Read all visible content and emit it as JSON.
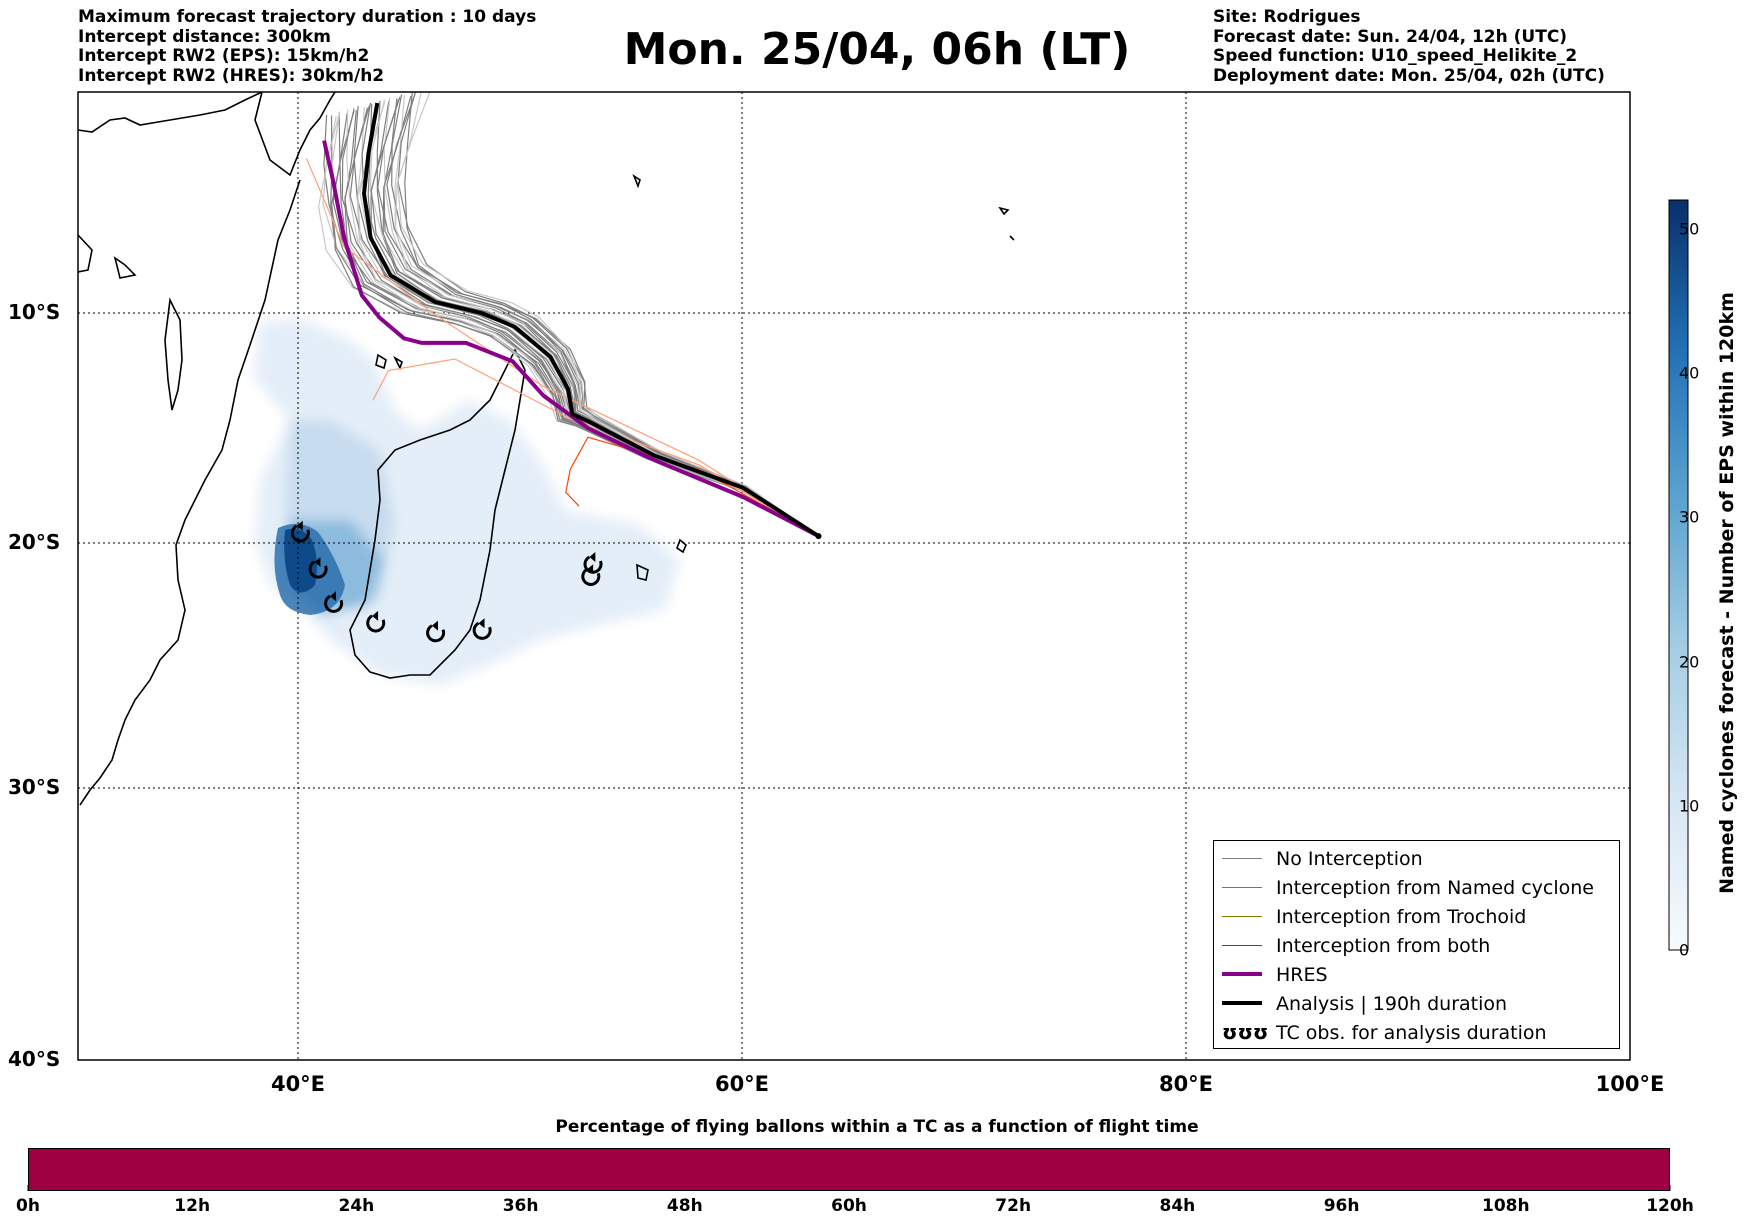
{
  "header_left": [
    "Maximum forecast trajectory duration : 10 days",
    "Intercept distance: 300km",
    "Intercept RW2 (EPS):  15km/h2",
    "Intercept RW2 (HRES): 30km/h2"
  ],
  "title": "Mon. 25/04, 06h (LT)",
  "header_right": [
    "Site: Rodrigues",
    "Forecast date: Sun. 24/04, 12h (UTC)",
    "Speed function: U10_speed_Helikite_2",
    "Deployment date: Mon. 25/04, 02h (UTC)"
  ],
  "map": {
    "lat_labels": [
      "10°S",
      "20°S",
      "30°S",
      "40°S"
    ],
    "lon_labels": [
      "40°E",
      "60°E",
      "80°E",
      "100°E"
    ],
    "lon_range": [
      30,
      100
    ],
    "lat_range": [
      -40,
      -0.5
    ],
    "gridlines": "dotted",
    "release_site": {
      "name": "Rodrigues",
      "lon": 63.4,
      "lat": -19.7
    },
    "tc_observations": [
      {
        "lon": 40.0,
        "lat": -19.6
      },
      {
        "lon": 40.8,
        "lat": -21.1
      },
      {
        "lon": 41.5,
        "lat": -22.5
      },
      {
        "lon": 43.4,
        "lat": -23.3
      },
      {
        "lon": 46.1,
        "lat": -23.7
      },
      {
        "lon": 48.2,
        "lat": -23.6
      },
      {
        "lon": 53.1,
        "lat": -21.4
      },
      {
        "lon": 53.2,
        "lat": -20.9
      }
    ],
    "analysis_track": [
      [
        63.4,
        -19.7
      ],
      [
        60,
        -17.6
      ],
      [
        56,
        -16.2
      ],
      [
        53,
        -14.7
      ],
      [
        52.3,
        -14.4
      ],
      [
        52.1,
        -13.3
      ],
      [
        51.3,
        -11.9
      ],
      [
        49.7,
        -10.6
      ],
      [
        48.2,
        -10
      ],
      [
        46.1,
        -9.5
      ],
      [
        44.1,
        -8.3
      ],
      [
        43.2,
        -6.6
      ],
      [
        42.9,
        -4.6
      ],
      [
        43.1,
        -2.8
      ],
      [
        43.5,
        -0.5
      ]
    ],
    "hres_track": [
      [
        63.4,
        -19.7
      ],
      [
        60,
        -18
      ],
      [
        56,
        -16.4
      ],
      [
        53,
        -15
      ],
      [
        51,
        -13.6
      ],
      [
        49.6,
        -12.1
      ],
      [
        47.5,
        -11.3
      ],
      [
        45.5,
        -11.3
      ],
      [
        44.7,
        -11.1
      ],
      [
        43.6,
        -10.2
      ],
      [
        42.8,
        -9.2
      ],
      [
        42.0,
        -6.6
      ],
      [
        41.5,
        -4
      ],
      [
        41.1,
        -2.2
      ]
    ]
  },
  "legend": {
    "items": [
      {
        "label": "No Interception",
        "color": "#7f7f7f",
        "width": 1.2
      },
      {
        "label": "Interception from Named cyclone",
        "color": "#ff4500",
        "width": 1.2
      },
      {
        "label": "Interception from Trochoid",
        "color": "#808000",
        "width": 1.2
      },
      {
        "label": "Interception from both",
        "color": "#008000",
        "width": 1.2
      },
      {
        "label": "HRES",
        "color": "#8b008b",
        "width": 4
      },
      {
        "label": "Analysis | 190h duration",
        "color": "#000000",
        "width": 4
      },
      {
        "label": "TC obs. for analysis duration",
        "icon": "cyclone-symbol-icon"
      }
    ],
    "tc_symbol_text": "ʊʊʊ"
  },
  "colorbar": {
    "label": "Named cyclones forecast - Number of EPS within 120km",
    "ticks": [
      "0",
      "10",
      "20",
      "30",
      "40",
      "50"
    ],
    "range": [
      0,
      52
    ],
    "cmap": [
      "#e3eef8",
      "#08306b"
    ]
  },
  "flight_time_bar": {
    "title": "Percentage of flying ballons within a TC as a function of flight time",
    "ticks": [
      "0h",
      "12h",
      "24h",
      "36h",
      "48h",
      "60h",
      "72h",
      "84h",
      "96h",
      "108h",
      "120h"
    ],
    "fill_color": "#9e0142",
    "percentage": 100
  }
}
